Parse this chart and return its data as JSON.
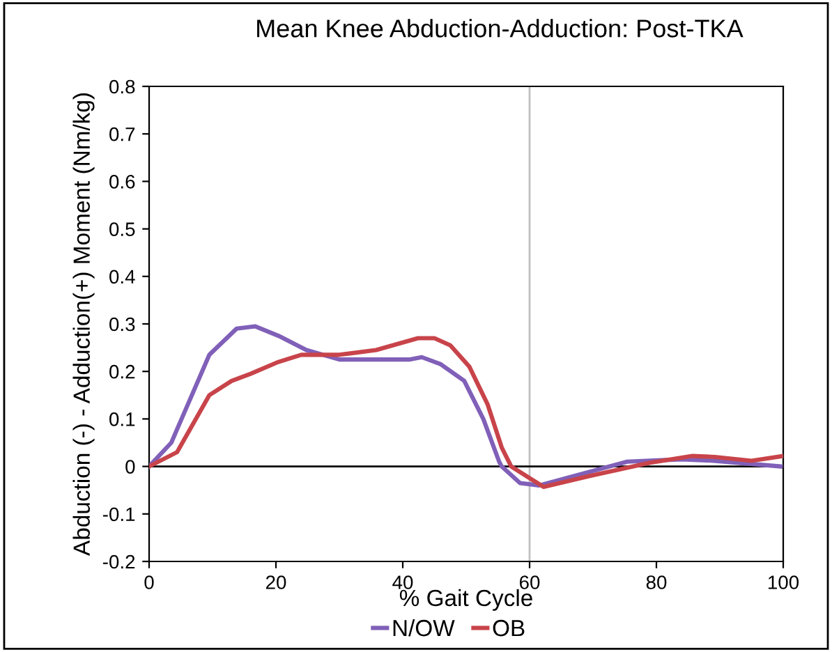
{
  "chart_data": {
    "type": "line",
    "title": "Mean Knee Abduction-Adduction: Post-TKA",
    "xlabel": "% Gait Cycle",
    "ylabel": "Abduction (-) - Adduction(+) Moment (Nm/kg)",
    "xlim": [
      0,
      100
    ],
    "ylim": [
      -0.2,
      0.8
    ],
    "xticks": [
      0,
      20,
      40,
      60,
      80,
      100
    ],
    "yticks": [
      -0.2,
      -0.1,
      0,
      0.1,
      0.2,
      0.3,
      0.4,
      0.5,
      0.6,
      0.7,
      0.8
    ],
    "ref_lines": [
      {
        "axis": "x",
        "value": 60,
        "color": "#c0c0c0"
      },
      {
        "axis": "y",
        "value": 0,
        "color": "#000000"
      }
    ],
    "grid": false,
    "legend": "bottom",
    "marker": "none",
    "line_style": "solid",
    "series": [
      {
        "name": "N/OW",
        "color": "#8060b8",
        "x": [
          0,
          3.5,
          9.5,
          13.8,
          16.7,
          20.4,
          24.8,
          30,
          41,
          43,
          46,
          49.7,
          52.7,
          55.2,
          55.6,
          58.5,
          61.5,
          75.4,
          84,
          89,
          99.6
        ],
        "values": [
          0,
          0.05,
          0.235,
          0.29,
          0.295,
          0.275,
          0.245,
          0.225,
          0.225,
          0.23,
          0.215,
          0.18,
          0.1,
          0.01,
          0,
          -0.035,
          -0.04,
          0.01,
          0.015,
          0.012,
          0
        ]
      },
      {
        "name": "OB",
        "color": "#c8444a",
        "x": [
          0,
          4.4,
          9.5,
          13,
          16,
          20.4,
          24,
          30,
          35.8,
          42.4,
          45,
          47.5,
          50.5,
          53.4,
          55.6,
          57.1,
          62.2,
          69.5,
          79,
          85.7,
          89.2,
          95,
          100
        ],
        "values": [
          0,
          0.03,
          0.15,
          0.18,
          0.195,
          0.22,
          0.235,
          0.235,
          0.245,
          0.27,
          0.27,
          0.255,
          0.21,
          0.13,
          0.04,
          0,
          -0.043,
          -0.02,
          0.008,
          0.022,
          0.02,
          0.012,
          0.022
        ]
      }
    ]
  }
}
